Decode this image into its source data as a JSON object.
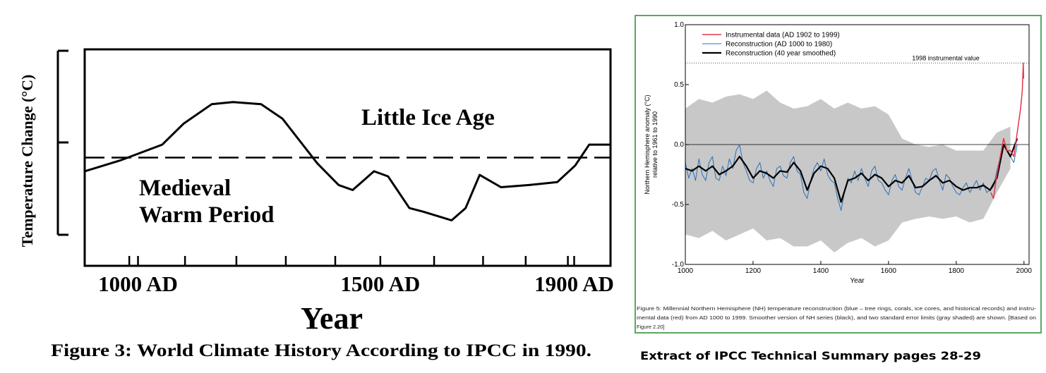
{
  "chart_data": [
    {
      "type": "line",
      "ylabel": "Temperature Change (°C)",
      "xlabel": "Year",
      "caption": "Figure 3: World Climate History According to IPCC in 1990.",
      "annotations": [
        {
          "lines": [
            "Little Ice Age"
          ]
        },
        {
          "lines": [
            "Medieval",
            "Warm Period"
          ]
        }
      ],
      "x": [
        890,
        963,
        1050,
        1094,
        1152,
        1196,
        1254,
        1298,
        1334,
        1370,
        1414,
        1443,
        1487,
        1516,
        1560,
        1589,
        1647,
        1676,
        1705,
        1749,
        1807,
        1865,
        1902,
        1931,
        1975
      ],
      "values": [
        -0.19,
        -0.04,
        0.18,
        0.47,
        0.74,
        0.77,
        0.74,
        0.54,
        0.23,
        -0.08,
        -0.38,
        -0.45,
        -0.19,
        -0.26,
        -0.7,
        -0.75,
        -0.87,
        -0.7,
        -0.24,
        -0.41,
        -0.38,
        -0.34,
        -0.11,
        0.18,
        0.18
      ],
      "color": "#000000",
      "hline": 0,
      "xlim": [
        890,
        1975
      ],
      "ylim": [
        -1.5,
        1.5
      ],
      "xticks": [
        {
          "value": 1000,
          "label": "1000 AD"
        },
        {
          "value": 1500,
          "label": "1500 AD"
        },
        {
          "value": 1900,
          "label": "1900 AD"
        }
      ],
      "minor_xticks": [
        982,
        1097,
        1203,
        1305,
        1407,
        1611,
        1712,
        1800,
        1887
      ]
    },
    {
      "type": "line",
      "ylabel": [
        "Northern Hemisphere anomaly (°C)",
        "relative to 1961 to 1990"
      ],
      "xlabel": "Year",
      "caption_lines": [
        "Figure 5: Millennial Northern Hemisphere (NH) temperature reconstruction (blue – tree rings, corals, ice cores, and historical records) and instru-",
        "mental data (red) from AD 1000 to 1999. Smoother version of NH series (black), and two standard error limits (gray shaded) are shown. [Based on",
        "Figure 2.20]"
      ],
      "xlim": [
        1000,
        2015
      ],
      "ylim": [
        -1.0,
        1.0
      ],
      "xticks": [
        1000,
        1200,
        1400,
        1600,
        1800,
        2000
      ],
      "yticks": [
        {
          "value": -1.0,
          "label": "-1.0"
        },
        {
          "value": -0.5,
          "label": "-0.5"
        },
        {
          "value": 0.0,
          "label": "0.0"
        },
        {
          "value": 0.5,
          "label": "0.5"
        },
        {
          "value": 1.0,
          "label": "1.0"
        }
      ],
      "hline": 0,
      "reference_lines": [
        {
          "value": 0.68,
          "label": "1998 instrumental value"
        }
      ],
      "band": {
        "color": "#c8c8c8",
        "x": [
          1000,
          1040,
          1080,
          1120,
          1160,
          1200,
          1240,
          1280,
          1320,
          1360,
          1400,
          1440,
          1480,
          1520,
          1560,
          1600,
          1640,
          1680,
          1720,
          1760,
          1800,
          1840,
          1880,
          1920,
          1960
        ],
        "upper": [
          0.3,
          0.38,
          0.35,
          0.4,
          0.42,
          0.38,
          0.45,
          0.35,
          0.3,
          0.32,
          0.38,
          0.3,
          0.35,
          0.3,
          0.32,
          0.25,
          0.05,
          0.0,
          -0.02,
          0.0,
          -0.05,
          -0.05,
          -0.05,
          0.1,
          0.15
        ],
        "lower": [
          -0.75,
          -0.78,
          -0.72,
          -0.8,
          -0.75,
          -0.7,
          -0.8,
          -0.78,
          -0.85,
          -0.85,
          -0.8,
          -0.9,
          -0.82,
          -0.78,
          -0.85,
          -0.8,
          -0.65,
          -0.62,
          -0.6,
          -0.62,
          -0.6,
          -0.65,
          -0.62,
          -0.4,
          -0.2
        ]
      },
      "series": [
        {
          "name": "Instrumental data (AD 1902 to 1999)",
          "color": "#e0384a",
          "width": 1.5,
          "x": [
            1902,
            1910,
            1920,
            1930,
            1940,
            1950,
            1960,
            1970,
            1980,
            1990,
            1995,
            1998,
            1999
          ],
          "values": [
            -0.4,
            -0.45,
            -0.25,
            -0.1,
            0.05,
            -0.05,
            -0.05,
            -0.1,
            0.1,
            0.3,
            0.45,
            0.68,
            0.55
          ]
        },
        {
          "name": "Reconstruction (AD 1000 to 1980)",
          "color": "#2a6fb8",
          "width": 1,
          "x": [
            1000,
            1010,
            1020,
            1030,
            1040,
            1050,
            1060,
            1070,
            1080,
            1090,
            1100,
            1110,
            1120,
            1130,
            1140,
            1150,
            1160,
            1170,
            1180,
            1190,
            1200,
            1210,
            1220,
            1230,
            1240,
            1250,
            1260,
            1270,
            1280,
            1290,
            1300,
            1310,
            1320,
            1330,
            1340,
            1350,
            1360,
            1370,
            1380,
            1390,
            1400,
            1410,
            1420,
            1430,
            1440,
            1450,
            1460,
            1470,
            1480,
            1490,
            1500,
            1510,
            1520,
            1530,
            1540,
            1550,
            1560,
            1570,
            1580,
            1590,
            1600,
            1610,
            1620,
            1630,
            1640,
            1650,
            1660,
            1670,
            1680,
            1690,
            1700,
            1710,
            1720,
            1730,
            1740,
            1750,
            1760,
            1770,
            1780,
            1790,
            1800,
            1810,
            1820,
            1830,
            1840,
            1850,
            1860,
            1870,
            1880,
            1890,
            1900,
            1910,
            1920,
            1930,
            1940,
            1950,
            1960,
            1970,
            1980
          ],
          "values": [
            -0.15,
            -0.28,
            -0.2,
            -0.3,
            -0.12,
            -0.25,
            -0.3,
            -0.15,
            -0.1,
            -0.28,
            -0.3,
            -0.18,
            -0.26,
            -0.12,
            -0.2,
            -0.05,
            0.0,
            -0.15,
            -0.22,
            -0.3,
            -0.32,
            -0.2,
            -0.15,
            -0.28,
            -0.22,
            -0.3,
            -0.35,
            -0.2,
            -0.18,
            -0.26,
            -0.28,
            -0.15,
            -0.1,
            -0.22,
            -0.25,
            -0.4,
            -0.45,
            -0.3,
            -0.2,
            -0.15,
            -0.22,
            -0.12,
            -0.25,
            -0.3,
            -0.32,
            -0.45,
            -0.55,
            -0.4,
            -0.28,
            -0.32,
            -0.22,
            -0.3,
            -0.2,
            -0.28,
            -0.35,
            -0.22,
            -0.18,
            -0.3,
            -0.32,
            -0.38,
            -0.42,
            -0.3,
            -0.25,
            -0.35,
            -0.38,
            -0.28,
            -0.2,
            -0.3,
            -0.4,
            -0.42,
            -0.35,
            -0.28,
            -0.3,
            -0.22,
            -0.2,
            -0.3,
            -0.38,
            -0.25,
            -0.28,
            -0.35,
            -0.4,
            -0.42,
            -0.36,
            -0.32,
            -0.4,
            -0.35,
            -0.3,
            -0.38,
            -0.32,
            -0.4,
            -0.38,
            -0.35,
            -0.22,
            -0.1,
            0.05,
            -0.05,
            -0.1,
            -0.15,
            0.0
          ]
        },
        {
          "name": "Reconstruction (40 year smoothed)",
          "color": "#000000",
          "width": 2.2,
          "x": [
            1000,
            1020,
            1040,
            1060,
            1080,
            1100,
            1120,
            1140,
            1160,
            1180,
            1200,
            1220,
            1240,
            1260,
            1280,
            1300,
            1320,
            1340,
            1360,
            1380,
            1400,
            1420,
            1440,
            1460,
            1480,
            1500,
            1520,
            1540,
            1560,
            1580,
            1600,
            1620,
            1640,
            1660,
            1680,
            1700,
            1720,
            1740,
            1760,
            1780,
            1800,
            1820,
            1840,
            1860,
            1880,
            1900,
            1920,
            1940,
            1960,
            1980
          ],
          "values": [
            -0.2,
            -0.22,
            -0.18,
            -0.22,
            -0.18,
            -0.25,
            -0.22,
            -0.18,
            -0.1,
            -0.18,
            -0.28,
            -0.22,
            -0.24,
            -0.28,
            -0.22,
            -0.23,
            -0.15,
            -0.22,
            -0.38,
            -0.24,
            -0.18,
            -0.2,
            -0.28,
            -0.48,
            -0.3,
            -0.28,
            -0.24,
            -0.3,
            -0.25,
            -0.28,
            -0.35,
            -0.3,
            -0.32,
            -0.26,
            -0.36,
            -0.35,
            -0.3,
            -0.26,
            -0.32,
            -0.3,
            -0.35,
            -0.38,
            -0.36,
            -0.36,
            -0.34,
            -0.38,
            -0.28,
            0.0,
            -0.1,
            0.05
          ]
        }
      ]
    }
  ],
  "footer": "Extract of IPCC Technical Summary pages 28-29"
}
